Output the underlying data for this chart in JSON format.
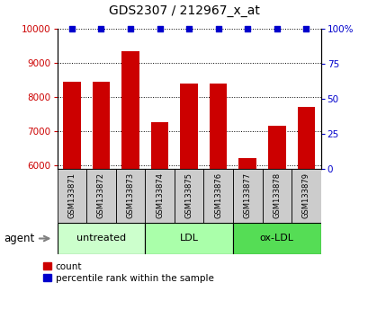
{
  "title": "GDS2307 / 212967_x_at",
  "samples": [
    "GSM133871",
    "GSM133872",
    "GSM133873",
    "GSM133874",
    "GSM133875",
    "GSM133876",
    "GSM133877",
    "GSM133878",
    "GSM133879"
  ],
  "counts": [
    8450,
    8450,
    9350,
    7250,
    8400,
    8400,
    6200,
    7150,
    7700
  ],
  "percentiles": [
    100,
    100,
    100,
    100,
    100,
    100,
    100,
    100,
    100
  ],
  "groups": [
    {
      "label": "untreated",
      "indices": [
        0,
        1,
        2
      ],
      "color": "#ccffcc"
    },
    {
      "label": "LDL",
      "indices": [
        3,
        4,
        5
      ],
      "color": "#aaffaa"
    },
    {
      "label": "ox-LDL",
      "indices": [
        6,
        7,
        8
      ],
      "color": "#55dd55"
    }
  ],
  "ylim_left": [
    5900,
    10000
  ],
  "ylim_right": [
    0,
    100
  ],
  "yticks_left": [
    6000,
    7000,
    8000,
    9000,
    10000
  ],
  "yticks_right": [
    0,
    25,
    50,
    75,
    100
  ],
  "bar_color": "#cc0000",
  "percentile_color": "#0000cc",
  "bar_width": 0.6,
  "background_color": "#ffffff",
  "sample_box_color": "#cccccc",
  "agent_label": "agent",
  "legend_count_label": "count",
  "legend_pct_label": "percentile rank within the sample"
}
